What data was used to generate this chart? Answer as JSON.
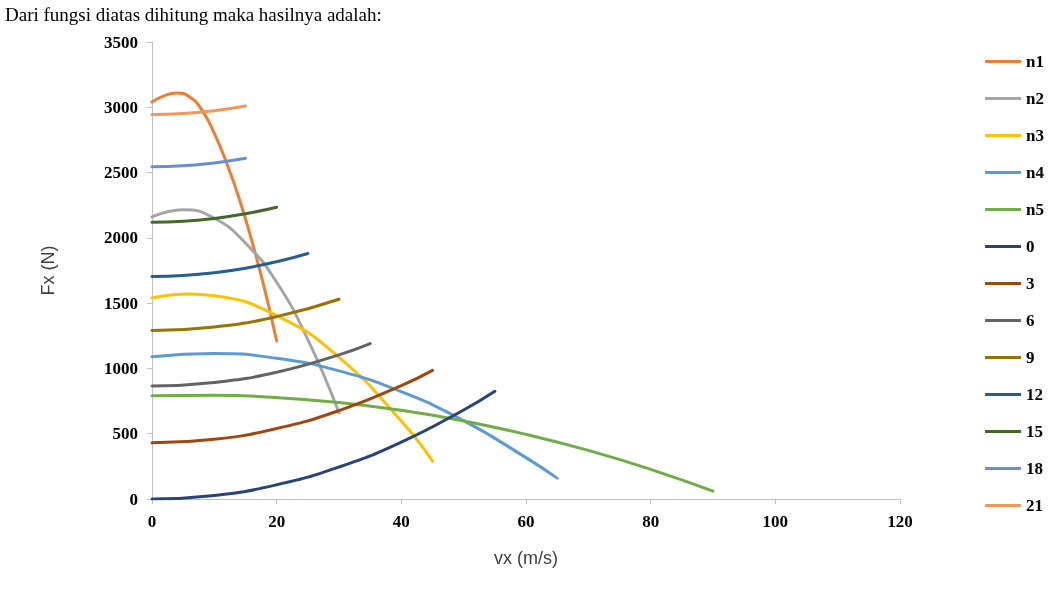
{
  "chart_data": {
    "type": "line",
    "title": "Dari fungsi diatas dihitung maka hasilnya adalah:",
    "xlabel": "vx (m/s)",
    "ylabel": "Fx (N)",
    "xlim": [
      0,
      120
    ],
    "xticks": [
      0,
      20,
      40,
      60,
      80,
      100,
      120
    ],
    "ylim": [
      0,
      3500
    ],
    "yticks": [
      0,
      500,
      1000,
      1500,
      2000,
      2500,
      3000,
      3500
    ],
    "grid": false,
    "legend": "right",
    "series": [
      {
        "name": "n1",
        "color": "#ed7d31",
        "x": [
          0,
          2,
          4,
          6,
          8,
          10,
          12,
          14,
          16,
          18,
          20
        ],
        "values": [
          3040,
          3090,
          3110,
          3080,
          2980,
          2800,
          2570,
          2300,
          1980,
          1620,
          1210
        ]
      },
      {
        "name": "n2",
        "color": "#a5a5a5",
        "x": [
          0,
          5,
          10,
          15,
          20,
          25,
          30
        ],
        "values": [
          2160,
          2215,
          2150,
          1960,
          1660,
          1220,
          660
        ]
      },
      {
        "name": "n3",
        "color": "#ffc000",
        "x": [
          0,
          6,
          10,
          20,
          30,
          40,
          45
        ],
        "values": [
          1540,
          1570,
          1557,
          1405,
          1085,
          597,
          290
        ]
      },
      {
        "name": "n4",
        "color": "#5b9bd5",
        "x": [
          0,
          10,
          20,
          30,
          40,
          50,
          60,
          65
        ],
        "values": [
          1090,
          1115,
          1078,
          981,
          822,
          600,
          317,
          160
        ]
      },
      {
        "name": "n5",
        "color": "#70ad47",
        "x": [
          0,
          10,
          20,
          30,
          40,
          50,
          60,
          70,
          80,
          90
        ],
        "values": [
          790,
          794,
          777,
          739,
          679,
          598,
          495,
          372,
          227,
          60
        ]
      },
      {
        "name": "0",
        "color": "#264478",
        "x": [
          0,
          10,
          20,
          30,
          40,
          50,
          55
        ],
        "values": [
          0,
          27,
          109,
          245,
          436,
          682,
          825
        ]
      },
      {
        "name": "3",
        "color": "#9e480e",
        "x": [
          0,
          10,
          20,
          30,
          40,
          45
        ],
        "values": [
          430,
          457,
          540,
          677,
          868,
          985
        ]
      },
      {
        "name": "6",
        "color": "#636363",
        "x": [
          0,
          10,
          20,
          30,
          35
        ],
        "values": [
          865,
          892,
          971,
          1104,
          1190
        ]
      },
      {
        "name": "9",
        "color": "#997300",
        "x": [
          0,
          10,
          20,
          30
        ],
        "values": [
          1290,
          1317,
          1397,
          1530
        ]
      },
      {
        "name": "12",
        "color": "#255e91",
        "x": [
          0,
          5,
          10,
          15,
          20,
          25
        ],
        "values": [
          1705,
          1712,
          1733,
          1768,
          1817,
          1880
        ]
      },
      {
        "name": "15",
        "color": "#43682b",
        "x": [
          0,
          5,
          10,
          15,
          20
        ],
        "values": [
          2120,
          2127,
          2149,
          2185,
          2235
        ]
      },
      {
        "name": "18",
        "color": "#698ed0",
        "x": [
          0,
          5,
          10,
          15
        ],
        "values": [
          2545,
          2552,
          2574,
          2610
        ]
      },
      {
        "name": "21",
        "color": "#f1975a",
        "x": [
          0,
          5,
          10,
          15
        ],
        "values": [
          2945,
          2952,
          2974,
          3010
        ]
      }
    ]
  }
}
